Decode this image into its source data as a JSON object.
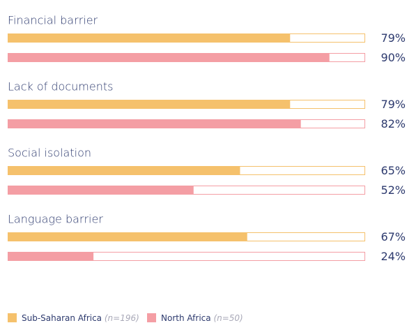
{
  "chart_data": {
    "type": "bar",
    "orientation": "horizontal",
    "categories": [
      "Financial barrier",
      "Lack of documents",
      "Social isolation",
      "Language barrier"
    ],
    "series": [
      {
        "name": "Sub-Saharan Africa",
        "note": "(n=196)",
        "color": "#f5c16c",
        "values": [
          79,
          79,
          65,
          67
        ],
        "value_labels": [
          "79%",
          "79%",
          "65%",
          "67%"
        ]
      },
      {
        "name": "North Africa",
        "note": "(n=50)",
        "color": "#f49ea4",
        "values": [
          90,
          82,
          52,
          24
        ],
        "value_labels": [
          "90%",
          "82%",
          "52%",
          "24%"
        ]
      }
    ],
    "xlim": [
      0,
      100
    ]
  }
}
